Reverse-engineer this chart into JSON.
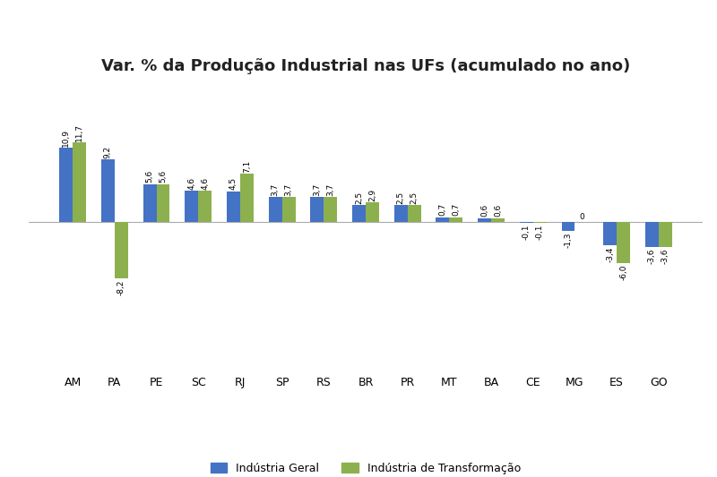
{
  "title": "Var. % da Produção Industrial nas UFs (acumulado no ano)",
  "categories": [
    "AM",
    "PA",
    "PE",
    "SC",
    "RJ",
    "SP",
    "RS",
    "BR",
    "PR",
    "MT",
    "BA",
    "CE",
    "MG",
    "ES",
    "GO"
  ],
  "industria_geral": [
    10.9,
    9.2,
    5.6,
    4.6,
    4.5,
    3.7,
    3.7,
    2.5,
    2.5,
    0.7,
    0.6,
    -0.1,
    -1.3,
    -3.4,
    -3.6
  ],
  "industria_transformacao": [
    11.7,
    -8.2,
    5.6,
    4.6,
    7.1,
    3.7,
    3.7,
    2.9,
    2.5,
    0.7,
    0.6,
    -0.1,
    0.0,
    -6.0,
    -3.6
  ],
  "color_geral": "#4472C4",
  "color_transformacao": "#8DB04E",
  "legend_geral": "Indústria Geral",
  "legend_transformacao": "Indústria de Transformação",
  "background_color": "#FFFFFF",
  "ylim": [
    -22,
    20
  ],
  "bar_width": 0.32,
  "label_fontsize": 6.5,
  "title_fontsize": 13,
  "xlabel_fontsize": 9
}
